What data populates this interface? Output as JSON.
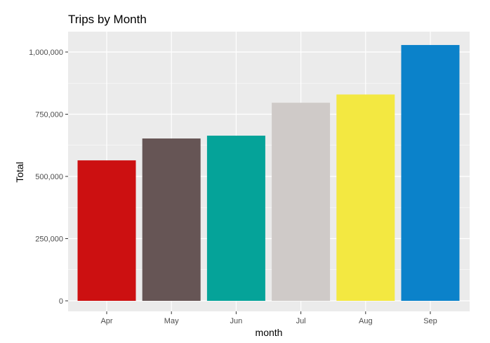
{
  "chart_data": {
    "type": "bar",
    "title": "Trips by Month",
    "xlabel": "month",
    "ylabel": "Total",
    "categories": [
      "Apr",
      "May",
      "Jun",
      "Jul",
      "Aug",
      "Sep"
    ],
    "values": [
      564516,
      652435,
      663844,
      796121,
      829275,
      1028136
    ],
    "colors": [
      "#CC1011",
      "#665555",
      "#05A399",
      "#CFCAC8",
      "#F3E841",
      "#0B82CA"
    ],
    "ylim": [
      0,
      1075000
    ],
    "yticks": [
      0,
      250000,
      500000,
      750000,
      1000000
    ],
    "ytick_labels": [
      "0",
      "250,000",
      "500,000",
      "750,000",
      "1,000,000"
    ],
    "grid": true,
    "legend": "none",
    "panel_background": "#EBEBEB",
    "grid_color": "#FFFFFF"
  }
}
